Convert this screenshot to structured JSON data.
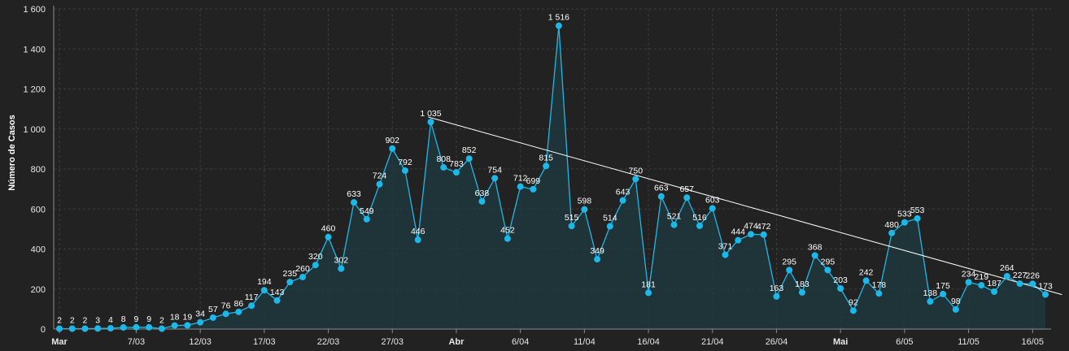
{
  "chart_data": {
    "type": "area",
    "ylabel": "Número de Casos",
    "xlabel": "",
    "ylim": [
      0,
      1600
    ],
    "y_ticks": [
      "0",
      "200",
      "400",
      "600",
      "800",
      "1 000",
      "1 200",
      "1 400",
      "1 600"
    ],
    "x_ticks": [
      {
        "label": "Mar",
        "index": 0,
        "bold": true
      },
      {
        "label": "7/03",
        "index": 6,
        "bold": false
      },
      {
        "label": "12/03",
        "index": 11,
        "bold": false
      },
      {
        "label": "17/03",
        "index": 16,
        "bold": false
      },
      {
        "label": "22/03",
        "index": 21,
        "bold": false
      },
      {
        "label": "27/03",
        "index": 26,
        "bold": false
      },
      {
        "label": "Abr",
        "index": 31,
        "bold": true
      },
      {
        "label": "6/04",
        "index": 36,
        "bold": false
      },
      {
        "label": "11/04",
        "index": 41,
        "bold": false
      },
      {
        "label": "16/04",
        "index": 46,
        "bold": false
      },
      {
        "label": "21/04",
        "index": 51,
        "bold": false
      },
      {
        "label": "26/04",
        "index": 56,
        "bold": false
      },
      {
        "label": "Mai",
        "index": 61,
        "bold": true
      },
      {
        "label": "6/05",
        "index": 66,
        "bold": false
      },
      {
        "label": "11/05",
        "index": 71,
        "bold": false
      },
      {
        "label": "16/05",
        "index": 76,
        "bold": false
      }
    ],
    "grid": true,
    "colors": {
      "background": "#222222",
      "line": "#1fb8e8",
      "point": "#1cb8ea",
      "area": "#1f3a40",
      "trend": "#ffffff",
      "grid": "#3d3d3d"
    },
    "series": [
      {
        "values": [
          2,
          2,
          2,
          3,
          4,
          8,
          9,
          9,
          2,
          18,
          19,
          34,
          57,
          76,
          86,
          117,
          194,
          143,
          235,
          260,
          320,
          460,
          302,
          633,
          549,
          724,
          902,
          792,
          446,
          1035,
          808,
          783,
          852,
          638,
          754,
          452,
          712,
          699,
          815,
          1516,
          515,
          598,
          349,
          514,
          643,
          750,
          181,
          663,
          521,
          657,
          516,
          603,
          371,
          444,
          474,
          472,
          163,
          295,
          183,
          368,
          295,
          203,
          92,
          242,
          178,
          480,
          533,
          553,
          138,
          175,
          98,
          234,
          219,
          187,
          264,
          227,
          226,
          173
        ],
        "labels": [
          "2",
          "2",
          "2",
          "3",
          "4",
          "8",
          "9",
          "9",
          "2",
          "18",
          "19",
          "34",
          "57",
          "76",
          "86",
          "117",
          "194",
          "143",
          "235",
          "260",
          "320",
          "460",
          "302",
          "633",
          "549",
          "724",
          "902",
          "792",
          "446",
          "1 035",
          "808",
          "783",
          "852",
          "638",
          "754",
          "452",
          "712",
          "699",
          "815",
          "1 516",
          "515",
          "598",
          "349",
          "514",
          "643",
          "750",
          "181",
          "663",
          "521",
          "657",
          "516",
          "603",
          "371",
          "444",
          "474",
          "472",
          "163",
          "295",
          "183",
          "368",
          "295",
          "203",
          "92",
          "242",
          "178",
          "480",
          "533",
          "553",
          "138",
          "175",
          "98",
          "234",
          "219",
          "187",
          "264",
          "227",
          "226",
          "173"
        ]
      }
    ],
    "trend_line": {
      "x0": 28.8,
      "y0": 1060,
      "x1": 78.3,
      "y1": 172
    }
  }
}
